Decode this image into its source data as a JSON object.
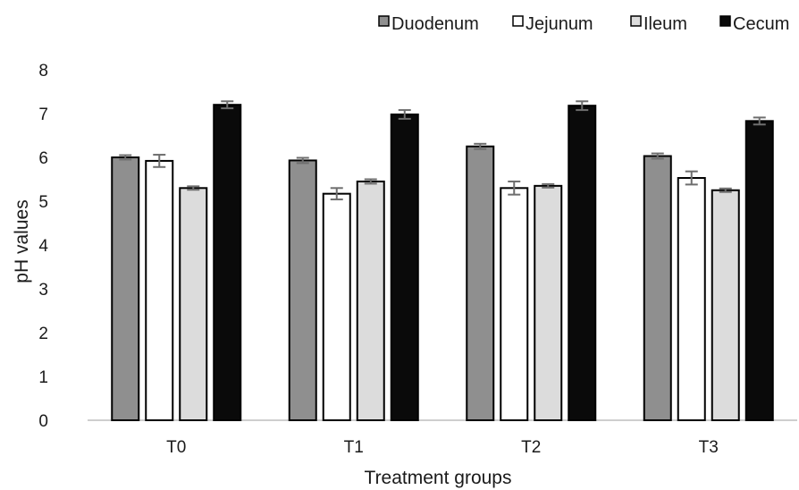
{
  "chart_data": {
    "type": "bar",
    "xlabel": "Treatment groups",
    "ylabel": "pH values",
    "ylim": [
      0,
      8
    ],
    "yticks": [
      "0",
      "1",
      "2",
      "3",
      "4",
      "5",
      "6",
      "7",
      "8"
    ],
    "categories": [
      "T0",
      "T1",
      "T2",
      "T3"
    ],
    "legend_position": "top-right",
    "grid": false,
    "series": [
      {
        "name": "Duodenum",
        "color": "#8f8f8f",
        "values": [
          6.0,
          5.93,
          6.25,
          6.03
        ],
        "errors": [
          0.05,
          0.06,
          0.06,
          0.06
        ]
      },
      {
        "name": "Jejunum",
        "color": "#ffffff",
        "values": [
          5.92,
          5.17,
          5.3,
          5.53
        ],
        "errors": [
          0.14,
          0.13,
          0.15,
          0.15
        ]
      },
      {
        "name": "Ileum",
        "color": "#dcdcdc",
        "values": [
          5.3,
          5.45,
          5.35,
          5.25
        ],
        "errors": [
          0.04,
          0.05,
          0.04,
          0.04
        ]
      },
      {
        "name": "Cecum",
        "color": "#0a0a0a",
        "values": [
          7.2,
          6.98,
          7.18,
          6.83
        ],
        "errors": [
          0.08,
          0.1,
          0.1,
          0.08
        ]
      }
    ]
  }
}
